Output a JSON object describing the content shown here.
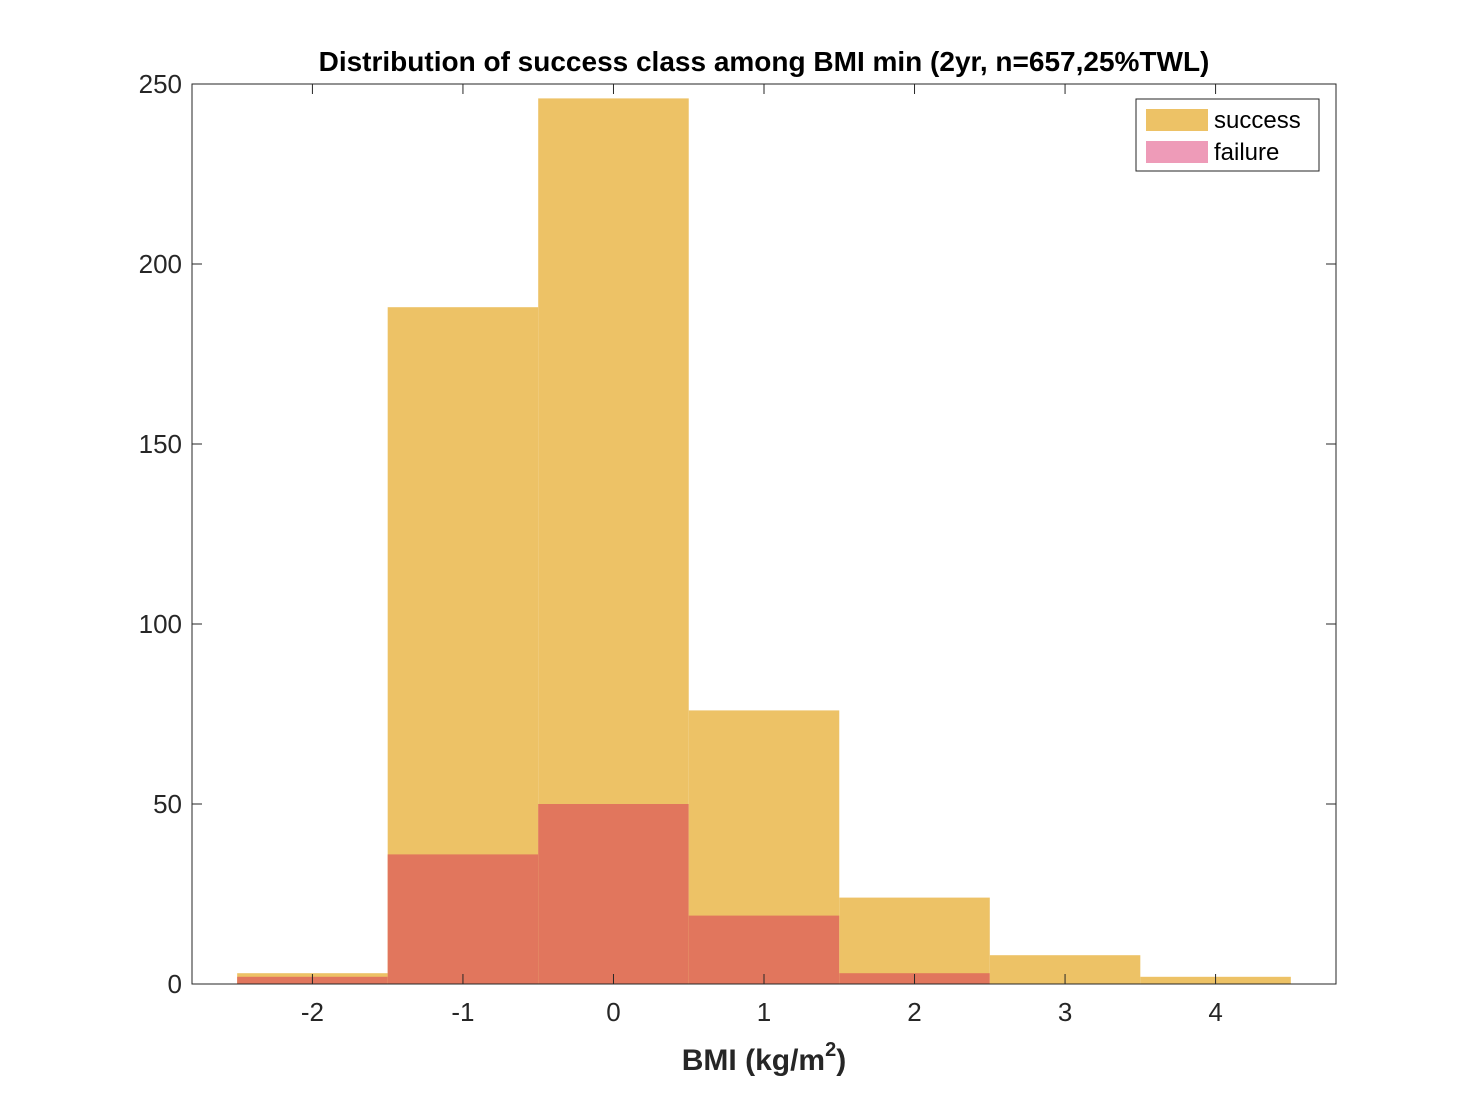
{
  "chart_data": {
    "type": "bar",
    "title": "Distribution of success class among BMI min (2yr, n=657,25%TWL)",
    "xlabel": {
      "base": "BMI (kg/m",
      "sup": "2",
      "end": ")"
    },
    "ylabel": "",
    "xlim": [
      -2.8,
      4.8
    ],
    "ylim": [
      0,
      250
    ],
    "xticks": [
      "-2",
      "-1",
      "0",
      "1",
      "2",
      "3",
      "4"
    ],
    "yticks": [
      "0",
      "50",
      "100",
      "150",
      "200",
      "250"
    ],
    "grid": false,
    "legend_position": "top-right",
    "bin_edges": [
      -2.5,
      -1.5,
      -0.5,
      0.5,
      1.5,
      2.5,
      3.5,
      4.5
    ],
    "series": [
      {
        "name": "success",
        "color": "#EDC266",
        "values": [
          3,
          188,
          246,
          76,
          24,
          8,
          2
        ]
      },
      {
        "name": "failure",
        "color": "#EE9BB8",
        "overlap_color": "#E1765D",
        "values": [
          2,
          36,
          50,
          19,
          3,
          0,
          0
        ]
      }
    ]
  }
}
